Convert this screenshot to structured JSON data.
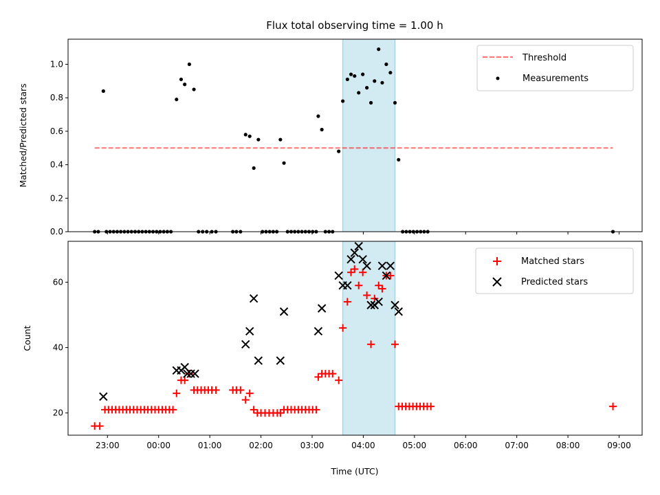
{
  "chart_data": {
    "type": "scatter",
    "title": "Flux total observing time = 1.00 h",
    "xlabel": "Time (UTC)",
    "x_units": "hours since 00:00 UTC",
    "xlim": [
      -1.77,
      9.45
    ],
    "xticks": [
      {
        "value": -1,
        "label": "23:00"
      },
      {
        "value": 0,
        "label": "00:00"
      },
      {
        "value": 1,
        "label": "01:00"
      },
      {
        "value": 2,
        "label": "02:00"
      },
      {
        "value": 3,
        "label": "03:00"
      },
      {
        "value": 4,
        "label": "04:00"
      },
      {
        "value": 5,
        "label": "05:00"
      },
      {
        "value": 6,
        "label": "06:00"
      },
      {
        "value": 7,
        "label": "07:00"
      },
      {
        "value": 8,
        "label": "08:00"
      },
      {
        "value": 9,
        "label": "09:00"
      }
    ],
    "highlight_span": {
      "x_start": 3.6,
      "x_end": 4.62,
      "color": "#add8e6"
    },
    "panels": [
      {
        "id": "ratio",
        "ylabel": "Matched/Predicted stars",
        "ylim": [
          0.0,
          1.15
        ],
        "yticks": [
          {
            "value": 0.0,
            "label": "0.0"
          },
          {
            "value": 0.2,
            "label": "0.2"
          },
          {
            "value": 0.4,
            "label": "0.4"
          },
          {
            "value": 0.6,
            "label": "0.6"
          },
          {
            "value": 0.8,
            "label": "0.8"
          },
          {
            "value": 1.0,
            "label": "1.0"
          }
        ],
        "threshold": {
          "name": "Threshold",
          "value": 0.5,
          "x_start": -1.25,
          "x_end": 8.88,
          "color": "#ff0000"
        },
        "series": [
          {
            "name": "Measurements",
            "marker": "dot",
            "color": "#000000",
            "points": [
              [
                -1.25,
                0
              ],
              [
                -1.18,
                0
              ],
              [
                -1.08,
                0.84
              ],
              [
                -1.02,
                0
              ],
              [
                -0.95,
                0
              ],
              [
                -0.88,
                0
              ],
              [
                -0.81,
                0
              ],
              [
                -0.74,
                0
              ],
              [
                -0.67,
                0
              ],
              [
                -0.6,
                0
              ],
              [
                -0.53,
                0
              ],
              [
                -0.46,
                0
              ],
              [
                -0.39,
                0
              ],
              [
                -0.32,
                0
              ],
              [
                -0.25,
                0
              ],
              [
                -0.18,
                0
              ],
              [
                -0.11,
                0
              ],
              [
                -0.04,
                0
              ],
              [
                0.03,
                0
              ],
              [
                0.1,
                0
              ],
              [
                0.17,
                0
              ],
              [
                0.24,
                0
              ],
              [
                0.35,
                0.79
              ],
              [
                0.44,
                0.91
              ],
              [
                0.51,
                0.88
              ],
              [
                0.6,
                1.0
              ],
              [
                0.69,
                0.85
              ],
              [
                0.78,
                0
              ],
              [
                0.86,
                0
              ],
              [
                0.94,
                0
              ],
              [
                1.04,
                0
              ],
              [
                1.12,
                0
              ],
              [
                1.45,
                0
              ],
              [
                1.52,
                0
              ],
              [
                1.6,
                0
              ],
              [
                1.7,
                0.58
              ],
              [
                1.78,
                0.57
              ],
              [
                1.86,
                0.38
              ],
              [
                1.95,
                0.55
              ],
              [
                2.03,
                0
              ],
              [
                2.1,
                0
              ],
              [
                2.17,
                0
              ],
              [
                2.24,
                0
              ],
              [
                2.31,
                0
              ],
              [
                2.38,
                0.55
              ],
              [
                2.45,
                0.41
              ],
              [
                2.52,
                0
              ],
              [
                2.59,
                0
              ],
              [
                2.66,
                0
              ],
              [
                2.73,
                0
              ],
              [
                2.8,
                0
              ],
              [
                2.87,
                0
              ],
              [
                2.94,
                0
              ],
              [
                3.01,
                0
              ],
              [
                3.08,
                0
              ],
              [
                3.12,
                0.69
              ],
              [
                3.19,
                0.61
              ],
              [
                3.26,
                0
              ],
              [
                3.33,
                0
              ],
              [
                3.4,
                0
              ],
              [
                3.52,
                0.48
              ],
              [
                3.6,
                0.78
              ],
              [
                3.69,
                0.91
              ],
              [
                3.76,
                0.94
              ],
              [
                3.83,
                0.93
              ],
              [
                3.91,
                0.83
              ],
              [
                3.99,
                0.94
              ],
              [
                4.07,
                0.86
              ],
              [
                4.15,
                0.77
              ],
              [
                4.22,
                0.9
              ],
              [
                4.3,
                1.09
              ],
              [
                4.37,
                0.89
              ],
              [
                4.45,
                1.0
              ],
              [
                4.53,
                0.95
              ],
              [
                4.62,
                0.77
              ],
              [
                4.69,
                0.43
              ],
              [
                4.77,
                0
              ],
              [
                4.84,
                0
              ],
              [
                4.91,
                0
              ],
              [
                4.98,
                0
              ],
              [
                5.05,
                0
              ],
              [
                5.12,
                0
              ],
              [
                5.19,
                0
              ],
              [
                5.26,
                0
              ],
              [
                8.88,
                0
              ]
            ]
          }
        ]
      },
      {
        "id": "count",
        "ylabel": "Count",
        "ylim": [
          13.2,
          72.5
        ],
        "yticks": [
          {
            "value": 20,
            "label": "20"
          },
          {
            "value": 40,
            "label": "40"
          },
          {
            "value": 60,
            "label": "60"
          }
        ],
        "series": [
          {
            "name": "Matched stars",
            "marker": "plus",
            "color": "#ff0000",
            "points": [
              [
                -1.25,
                16
              ],
              [
                -1.15,
                16
              ],
              [
                -1.05,
                21
              ],
              [
                -0.98,
                21
              ],
              [
                -0.91,
                21
              ],
              [
                -0.84,
                21
              ],
              [
                -0.77,
                21
              ],
              [
                -0.7,
                21
              ],
              [
                -0.63,
                21
              ],
              [
                -0.56,
                21
              ],
              [
                -0.49,
                21
              ],
              [
                -0.42,
                21
              ],
              [
                -0.35,
                21
              ],
              [
                -0.28,
                21
              ],
              [
                -0.21,
                21
              ],
              [
                -0.14,
                21
              ],
              [
                -0.07,
                21
              ],
              [
                0.0,
                21
              ],
              [
                0.07,
                21
              ],
              [
                0.14,
                21
              ],
              [
                0.21,
                21
              ],
              [
                0.28,
                21
              ],
              [
                0.35,
                26
              ],
              [
                0.44,
                30
              ],
              [
                0.51,
                30
              ],
              [
                0.6,
                32
              ],
              [
                0.69,
                27
              ],
              [
                0.76,
                27
              ],
              [
                0.83,
                27
              ],
              [
                0.9,
                27
              ],
              [
                0.97,
                27
              ],
              [
                1.04,
                27
              ],
              [
                1.12,
                27
              ],
              [
                1.45,
                27
              ],
              [
                1.52,
                27
              ],
              [
                1.6,
                27
              ],
              [
                1.7,
                24
              ],
              [
                1.78,
                26
              ],
              [
                1.86,
                21
              ],
              [
                1.93,
                20
              ],
              [
                2.0,
                20
              ],
              [
                2.08,
                20
              ],
              [
                2.16,
                20
              ],
              [
                2.24,
                20
              ],
              [
                2.32,
                20
              ],
              [
                2.38,
                20
              ],
              [
                2.45,
                21
              ],
              [
                2.52,
                21
              ],
              [
                2.59,
                21
              ],
              [
                2.66,
                21
              ],
              [
                2.73,
                21
              ],
              [
                2.8,
                21
              ],
              [
                2.87,
                21
              ],
              [
                2.94,
                21
              ],
              [
                3.01,
                21
              ],
              [
                3.08,
                21
              ],
              [
                3.12,
                31
              ],
              [
                3.19,
                32
              ],
              [
                3.26,
                32
              ],
              [
                3.33,
                32
              ],
              [
                3.4,
                32
              ],
              [
                3.52,
                30
              ],
              [
                3.6,
                46
              ],
              [
                3.69,
                54
              ],
              [
                3.76,
                63
              ],
              [
                3.83,
                64
              ],
              [
                3.91,
                59
              ],
              [
                3.99,
                63
              ],
              [
                4.07,
                56
              ],
              [
                4.15,
                41
              ],
              [
                4.22,
                55
              ],
              [
                4.3,
                59
              ],
              [
                4.37,
                58
              ],
              [
                4.45,
                62
              ],
              [
                4.53,
                62
              ],
              [
                4.62,
                41
              ],
              [
                4.69,
                22
              ],
              [
                4.76,
                22
              ],
              [
                4.83,
                22
              ],
              [
                4.9,
                22
              ],
              [
                4.97,
                22
              ],
              [
                5.04,
                22
              ],
              [
                5.11,
                22
              ],
              [
                5.18,
                22
              ],
              [
                5.25,
                22
              ],
              [
                5.32,
                22
              ],
              [
                8.88,
                22
              ]
            ]
          },
          {
            "name": "Predicted stars",
            "marker": "x",
            "color": "#000000",
            "points": [
              [
                -1.08,
                25
              ],
              [
                0.35,
                33
              ],
              [
                0.44,
                33
              ],
              [
                0.51,
                34
              ],
              [
                0.56,
                32
              ],
              [
                0.63,
                32
              ],
              [
                0.71,
                32
              ],
              [
                1.7,
                41
              ],
              [
                1.78,
                45
              ],
              [
                1.86,
                55
              ],
              [
                1.95,
                36
              ],
              [
                2.38,
                36
              ],
              [
                2.45,
                51
              ],
              [
                3.12,
                45
              ],
              [
                3.19,
                52
              ],
              [
                3.52,
                62
              ],
              [
                3.6,
                59
              ],
              [
                3.69,
                59
              ],
              [
                3.76,
                67
              ],
              [
                3.83,
                69
              ],
              [
                3.91,
                71
              ],
              [
                3.99,
                67
              ],
              [
                4.07,
                65
              ],
              [
                4.15,
                53
              ],
              [
                4.22,
                53
              ],
              [
                4.3,
                54
              ],
              [
                4.37,
                65
              ],
              [
                4.45,
                62
              ],
              [
                4.53,
                65
              ],
              [
                4.62,
                53
              ],
              [
                4.69,
                51
              ]
            ]
          }
        ]
      }
    ]
  }
}
